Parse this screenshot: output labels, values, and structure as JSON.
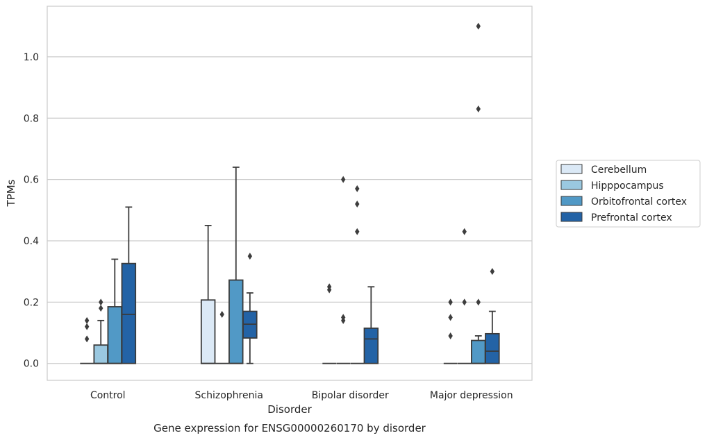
{
  "chart_data": {
    "type": "box",
    "caption": "Gene expression for ENSG00000260170 by disorder",
    "xlabel": "Disorder",
    "ylabel": "TPMs",
    "ylim": [
      -0.055,
      1.165
    ],
    "yticks": [
      0.0,
      0.2,
      0.4,
      0.6,
      0.8,
      1.0
    ],
    "ytick_labels": [
      "0.0",
      "0.2",
      "0.4",
      "0.6",
      "0.8",
      "1.0"
    ],
    "grid": true,
    "legend_position": "right",
    "categories": [
      "Control",
      "Schizophrenia",
      "Bipolar disorder",
      "Major depression"
    ],
    "series": [
      {
        "name": "Cerebellum",
        "color": "#dbe9f6",
        "boxes": [
          {
            "q1": 0,
            "median": 0,
            "q3": 0,
            "whislo": 0,
            "whishi": 0,
            "fliers": [
              0.08,
              0.12,
              0.14
            ]
          },
          {
            "q1": 0,
            "median": 0,
            "q3": 0.207,
            "whislo": 0,
            "whishi": 0.45,
            "fliers": []
          },
          {
            "q1": 0,
            "median": 0,
            "q3": 0,
            "whislo": 0,
            "whishi": 0,
            "fliers": [
              0.24,
              0.25
            ]
          },
          {
            "q1": 0,
            "median": 0,
            "q3": 0,
            "whislo": 0,
            "whishi": 0,
            "fliers": [
              0.09,
              0.15,
              0.2
            ]
          }
        ]
      },
      {
        "name": "Hipppocampus",
        "color": "#9ac8e0",
        "boxes": [
          {
            "q1": 0,
            "median": 0,
            "q3": 0.06,
            "whislo": 0,
            "whishi": 0.14,
            "fliers": [
              0.18,
              0.2
            ]
          },
          {
            "q1": 0,
            "median": 0,
            "q3": 0,
            "whislo": 0,
            "whishi": 0,
            "fliers": [
              0.16
            ]
          },
          {
            "q1": 0,
            "median": 0,
            "q3": 0,
            "whislo": 0,
            "whishi": 0,
            "fliers": [
              0.14,
              0.15,
              0.6
            ]
          },
          {
            "q1": 0,
            "median": 0,
            "q3": 0,
            "whislo": 0,
            "whishi": 0,
            "fliers": [
              0.2,
              0.43
            ]
          }
        ]
      },
      {
        "name": "Orbitofrontal cortex",
        "color": "#5199c6",
        "boxes": [
          {
            "q1": 0,
            "median": 0,
            "q3": 0.185,
            "whislo": 0,
            "whishi": 0.34,
            "fliers": []
          },
          {
            "q1": 0,
            "median": 0,
            "q3": 0.272,
            "whislo": 0,
            "whishi": 0.64,
            "fliers": []
          },
          {
            "q1": 0,
            "median": 0,
            "q3": 0,
            "whislo": 0,
            "whishi": 0,
            "fliers": [
              0.43,
              0.52,
              0.57
            ]
          },
          {
            "q1": 0,
            "median": 0,
            "q3": 0.075,
            "whislo": 0,
            "whishi": 0.09,
            "fliers": [
              0.2,
              0.83,
              1.1
            ]
          }
        ]
      },
      {
        "name": "Prefrontal cortex",
        "color": "#2363a6",
        "boxes": [
          {
            "q1": 0,
            "median": 0.16,
            "q3": 0.326,
            "whislo": 0,
            "whishi": 0.51,
            "fliers": []
          },
          {
            "q1": 0.083,
            "median": 0.128,
            "q3": 0.17,
            "whislo": 0,
            "whishi": 0.23,
            "fliers": [
              0.35
            ]
          },
          {
            "q1": 0,
            "median": 0.08,
            "q3": 0.115,
            "whislo": 0,
            "whishi": 0.25,
            "fliers": []
          },
          {
            "q1": 0,
            "median": 0.04,
            "q3": 0.097,
            "whislo": 0,
            "whishi": 0.17,
            "fliers": [
              0.3
            ]
          }
        ]
      }
    ]
  }
}
